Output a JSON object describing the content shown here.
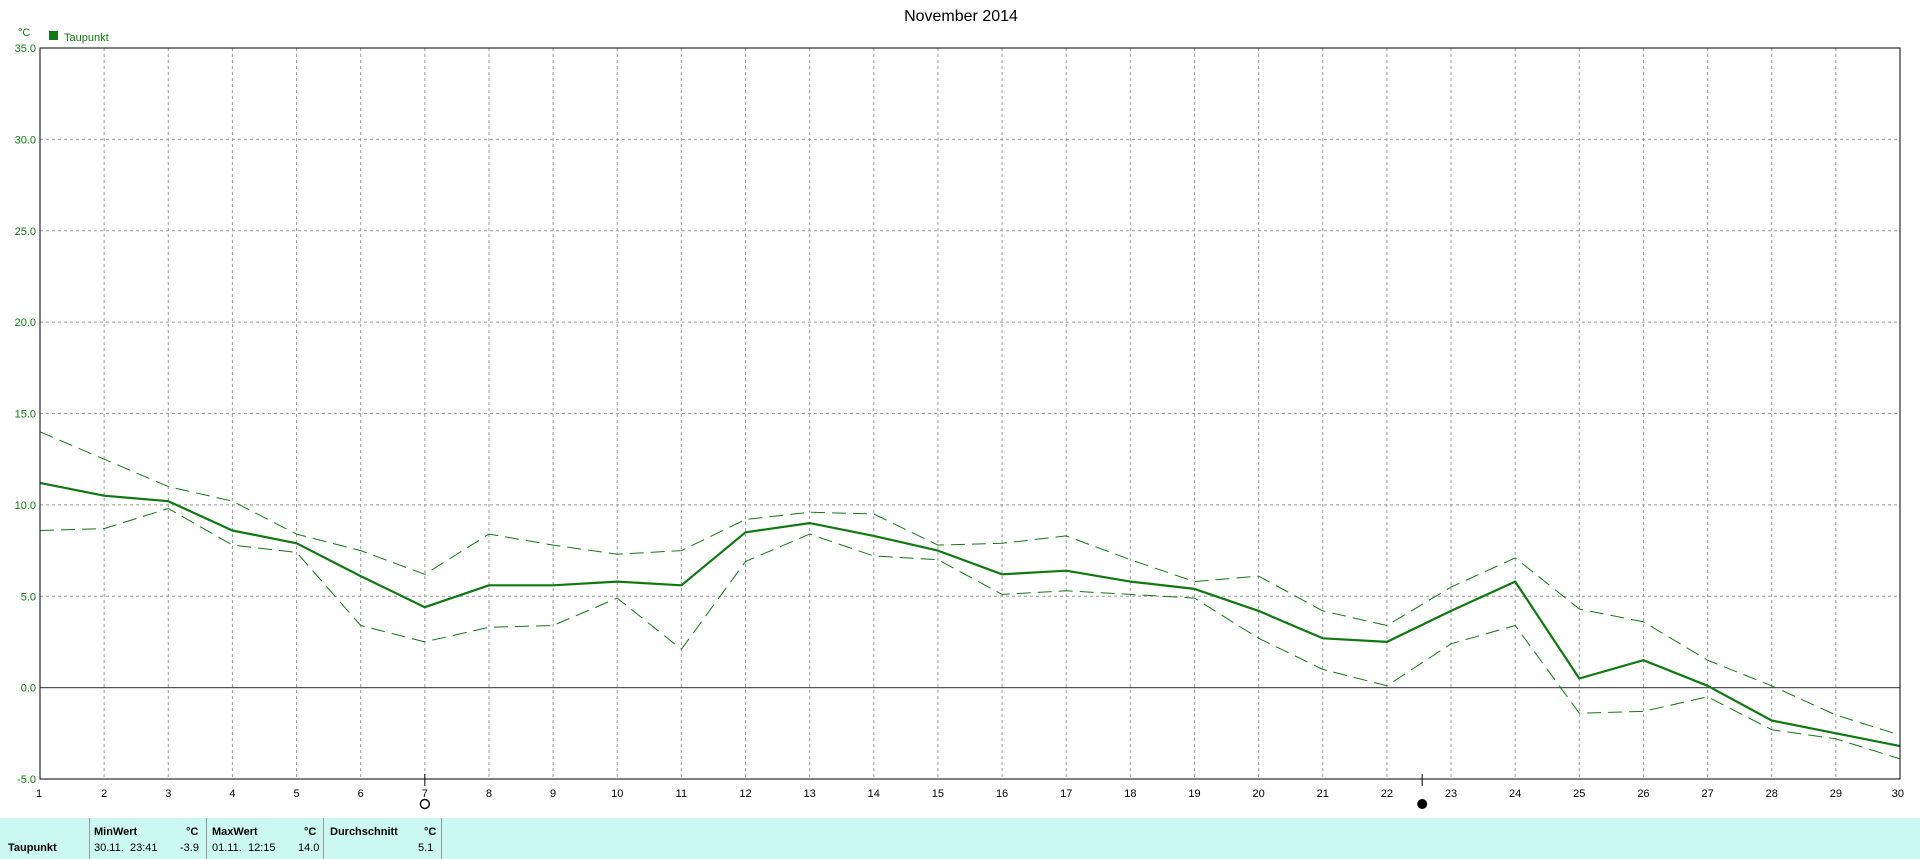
{
  "chart_data": {
    "type": "line",
    "title": "November 2014",
    "ylabel": "°C",
    "xlim": [
      1,
      30
    ],
    "ylim": [
      -5,
      35
    ],
    "x_ticks": [
      1,
      2,
      3,
      4,
      5,
      6,
      7,
      8,
      9,
      10,
      11,
      12,
      13,
      14,
      15,
      16,
      17,
      18,
      19,
      20,
      21,
      22,
      23,
      24,
      25,
      26,
      27,
      28,
      29,
      30
    ],
    "y_ticks": [
      "-5.0",
      "0.0",
      "5.0",
      "10.0",
      "15.0",
      "20.0",
      "25.0",
      "30.0",
      "35.0"
    ],
    "grid": true,
    "legend": [
      {
        "name": "Taupunkt",
        "color": "#107810"
      }
    ],
    "legend_position": "top-left",
    "series": [
      {
        "name": "Taupunkt",
        "style": "solid",
        "x": [
          1,
          2,
          3,
          4,
          5,
          6,
          7,
          8,
          9,
          10,
          11,
          12,
          13,
          14,
          15,
          16,
          17,
          18,
          19,
          20,
          21,
          22,
          23,
          24,
          25,
          26,
          27,
          28,
          29,
          30
        ],
        "values": [
          11.2,
          10.5,
          10.2,
          8.6,
          7.9,
          6.1,
          4.4,
          5.6,
          5.6,
          5.8,
          5.6,
          8.5,
          9.0,
          8.3,
          7.5,
          6.2,
          6.4,
          5.8,
          5.4,
          4.2,
          2.7,
          2.5,
          4.2,
          5.8,
          0.5,
          1.5,
          0.1,
          -1.8,
          -2.5,
          -3.2
        ]
      },
      {
        "style": "dashed",
        "x": [
          1,
          2,
          3,
          4,
          5,
          6,
          7,
          8,
          9,
          10,
          11,
          12,
          13,
          14,
          15,
          16,
          17,
          18,
          19,
          20,
          21,
          22,
          23,
          24,
          25,
          26,
          27,
          28,
          29,
          30
        ],
        "values": [
          14.0,
          12.5,
          11.0,
          10.2,
          8.4,
          7.5,
          6.2,
          8.4,
          7.8,
          7.3,
          7.5,
          9.2,
          9.6,
          9.5,
          7.8,
          7.9,
          8.3,
          7.0,
          5.8,
          6.1,
          4.2,
          3.4,
          5.5,
          7.1,
          4.3,
          3.6,
          1.5,
          0.1,
          -1.5,
          -2.6
        ]
      },
      {
        "style": "dashed",
        "x": [
          1,
          2,
          3,
          4,
          5,
          6,
          7,
          8,
          9,
          10,
          11,
          12,
          13,
          14,
          15,
          16,
          17,
          18,
          19,
          20,
          21,
          22,
          23,
          24,
          25,
          26,
          27,
          28,
          29,
          30
        ],
        "values": [
          8.6,
          8.7,
          9.8,
          7.8,
          7.4,
          3.4,
          2.5,
          3.3,
          3.4,
          4.9,
          2.1,
          6.9,
          8.4,
          7.2,
          7.0,
          5.1,
          5.3,
          5.1,
          4.9,
          2.7,
          1.0,
          0.1,
          2.4,
          3.4,
          -1.4,
          -1.3,
          -0.5,
          -2.3,
          -2.8,
          -3.9
        ]
      }
    ],
    "markers": [
      {
        "x": 7,
        "symbol": "open-circle"
      },
      {
        "x": 22.55,
        "symbol": "filled-circle"
      }
    ]
  },
  "stats": {
    "row_label": "Taupunkt",
    "min_header": "MinWert",
    "min_unit": "°C",
    "min_date": "30.11.",
    "min_time": "23:41",
    "min_value": "-3.9",
    "max_header": "MaxWert",
    "max_unit": "°C",
    "max_date": "01.11.",
    "max_time": "12:15",
    "max_value": "14.0",
    "avg_header": "Durchschnitt",
    "avg_unit": "°C",
    "avg_value": "5.1"
  },
  "colors": {
    "series": "#107810",
    "grid": "#9a9a9a",
    "zero_line": "#555555",
    "stats_bg": "#ccf8f4"
  }
}
